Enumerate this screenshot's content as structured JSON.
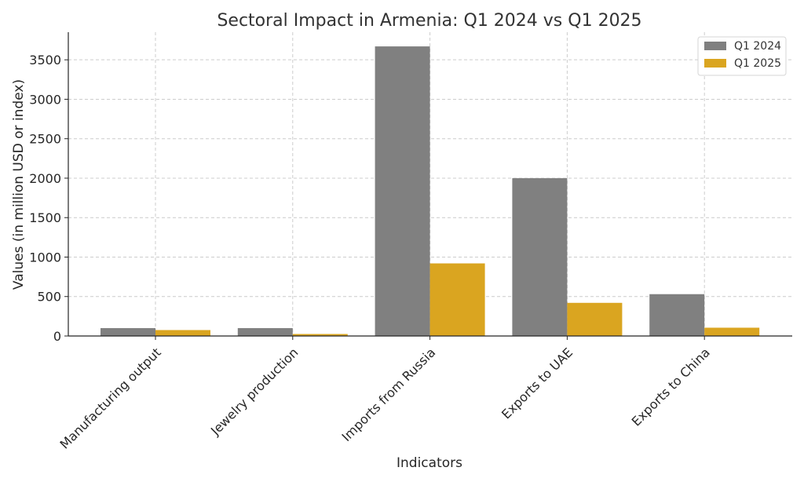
{
  "chart_data": {
    "type": "bar",
    "title": "Sectoral Impact in Armenia: Q1 2024 vs Q1 2025",
    "xlabel": "Indicators",
    "ylabel": "Values (in million USD or index)",
    "categories": [
      "Manufacturing output",
      "Jewelry production",
      "Imports from Russia",
      "Exports to UAE",
      "Exports to China"
    ],
    "series": [
      {
        "name": "Q1 2024",
        "color": "#808080",
        "values": [
          100,
          100,
          3670,
          2000,
          530
        ]
      },
      {
        "name": "Q1 2025",
        "color": "#DAA520",
        "values": [
          75,
          25,
          920,
          420,
          105
        ]
      }
    ],
    "ylim": [
      0,
      3850
    ],
    "yticks": [
      0,
      500,
      1000,
      1500,
      2000,
      2500,
      3000,
      3500
    ],
    "grid": true,
    "legend_position": "top-right"
  }
}
